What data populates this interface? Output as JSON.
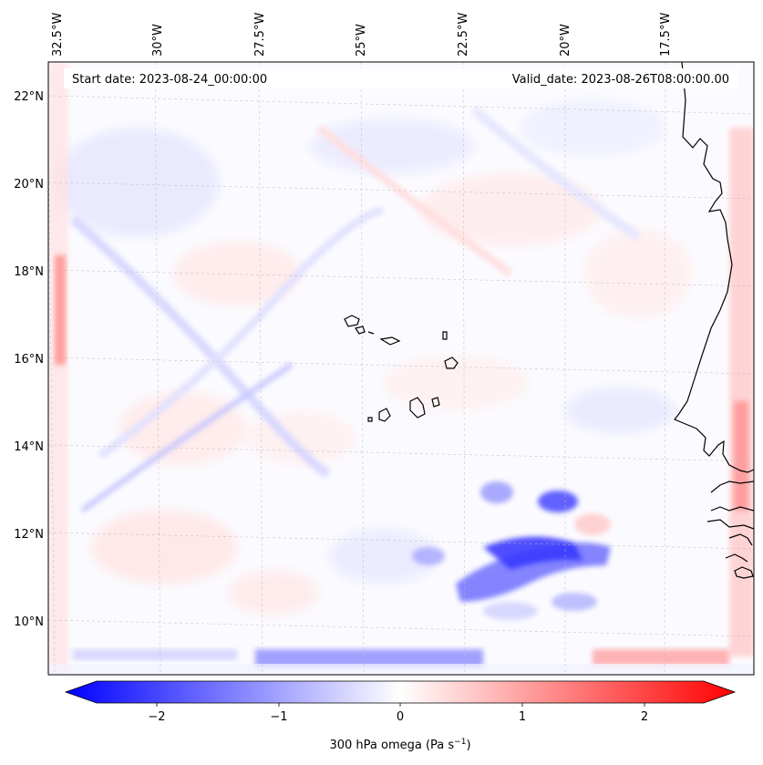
{
  "header": {
    "start_date": "Start date: 2023-08-24_00:00:00",
    "valid_date": "Valid_date: 2023-08-26T08:00:00.00"
  },
  "map": {
    "lon_labels": [
      "32.5°W",
      "30°W",
      "27.5°W",
      "25°W",
      "22.5°W",
      "20°W",
      "17.5°W"
    ],
    "lat_labels": [
      "22°N",
      "20°N",
      "18°N",
      "16°N",
      "14°N",
      "12°N",
      "10°N"
    ],
    "field": "300 hPa omega",
    "colormap": "bwr",
    "negative_color": "#0000ff",
    "positive_color": "#ff0000",
    "coastline_color": "#000000"
  },
  "colorbar": {
    "ticks": [
      "−2",
      "−1",
      "0",
      "1",
      "2"
    ],
    "label_main": "300 hPa omega (Pa s",
    "label_sup": "−1",
    "label_end": ")"
  }
}
